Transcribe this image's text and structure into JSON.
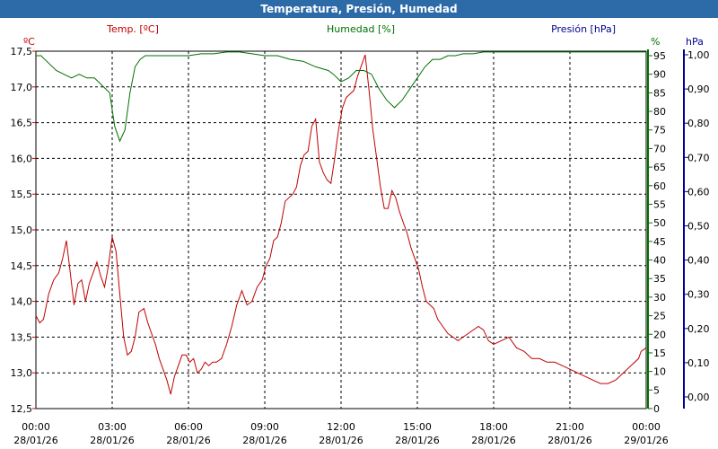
{
  "window": {
    "title": "Temperatura, Presión, Humedad"
  },
  "colors": {
    "temperature": "#c00000",
    "humidity": "#007000",
    "pressure": "#000090",
    "grid": "#000000",
    "title_bar": "#2c6aa8"
  },
  "chart_data": {
    "type": "line",
    "title": "Temperatura, Presión, Humedad",
    "grid": true,
    "x_ticks": [
      {
        "time": "00:00",
        "date": "28/01/26"
      },
      {
        "time": "03:00",
        "date": "28/01/26"
      },
      {
        "time": "06:00",
        "date": "28/01/26"
      },
      {
        "time": "09:00",
        "date": "28/01/26"
      },
      {
        "time": "12:00",
        "date": "28/01/26"
      },
      {
        "time": "15:00",
        "date": "28/01/26"
      },
      {
        "time": "18:00",
        "date": "28/01/26"
      },
      {
        "time": "21:00",
        "date": "28/01/26"
      },
      {
        "time": "00:00",
        "date": "29/01/26"
      }
    ],
    "axes": {
      "temperature": {
        "label": "Temp. [ºC]",
        "unit": "ºC",
        "range": [
          12.5,
          17.5
        ],
        "ticks": [
          "12,5",
          "13,0",
          "13,5",
          "14,0",
          "14,5",
          "15,0",
          "15,5",
          "16,0",
          "16,5",
          "17,0",
          "17,5"
        ]
      },
      "humidity": {
        "label": "Humedad [%]",
        "unit": "%",
        "range": [
          0,
          95
        ],
        "ticks": [
          "0",
          "5",
          "10",
          "15",
          "20",
          "25",
          "30",
          "35",
          "40",
          "45",
          "50",
          "55",
          "60",
          "65",
          "70",
          "75",
          "80",
          "85",
          "90",
          "95"
        ]
      },
      "pressure": {
        "label": "Presión [hPa]",
        "unit": "hPa",
        "range": [
          0,
          1
        ],
        "ticks": [
          "0,00",
          "0,10",
          "0,20",
          "0,30",
          "0,40",
          "0,50",
          "0,60",
          "0,70",
          "0,80",
          "0,90",
          "1,00"
        ]
      }
    },
    "series": [
      {
        "name": "Temp. [ºC]",
        "axis": "temperature",
        "x": [
          0,
          0.15,
          0.3,
          0.5,
          0.7,
          0.9,
          1.05,
          1.2,
          1.35,
          1.5,
          1.65,
          1.8,
          1.95,
          2.1,
          2.25,
          2.4,
          2.55,
          2.7,
          2.85,
          3.0,
          3.15,
          3.3,
          3.45,
          3.6,
          3.75,
          3.9,
          4.05,
          4.25,
          4.4,
          4.55,
          4.7,
          4.85,
          5.0,
          5.15,
          5.3,
          5.45,
          5.6,
          5.75,
          5.9,
          6.05,
          6.2,
          6.35,
          6.5,
          6.65,
          6.8,
          6.95,
          7.1,
          7.3,
          7.5,
          7.7,
          7.9,
          8.1,
          8.3,
          8.5,
          8.7,
          8.9,
          9.05,
          9.2,
          9.35,
          9.5,
          9.65,
          9.8,
          9.95,
          10.1,
          10.25,
          10.4,
          10.55,
          10.7,
          10.85,
          11.0,
          11.15,
          11.3,
          11.45,
          11.6,
          11.75,
          11.9,
          12.05,
          12.2,
          12.35,
          12.5,
          12.65,
          12.8,
          12.95,
          13.1,
          13.25,
          13.4,
          13.55,
          13.7,
          13.85,
          14.0,
          14.15,
          14.3,
          14.45,
          14.6,
          14.75,
          14.9,
          15.05,
          15.2,
          15.35,
          15.5,
          15.65,
          15.8,
          16.0,
          16.2,
          16.4,
          16.6,
          16.8,
          17.0,
          17.2,
          17.4,
          17.6,
          17.8,
          18.0,
          18.3,
          18.6,
          18.9,
          19.2,
          19.5,
          19.8,
          20.1,
          20.4,
          20.7,
          21.0,
          21.3,
          21.6,
          21.9,
          22.2,
          22.5,
          22.8,
          23.1,
          23.4,
          23.7,
          23.8,
          24.0
        ],
        "y": [
          13.8,
          13.7,
          13.75,
          14.1,
          14.3,
          14.4,
          14.6,
          14.85,
          14.4,
          13.95,
          14.25,
          14.3,
          14.0,
          14.25,
          14.4,
          14.55,
          14.35,
          14.2,
          14.5,
          14.9,
          14.7,
          14.1,
          13.5,
          13.25,
          13.3,
          13.5,
          13.85,
          13.9,
          13.7,
          13.55,
          13.4,
          13.2,
          13.05,
          12.9,
          12.7,
          12.95,
          13.1,
          13.25,
          13.25,
          13.15,
          13.2,
          13.0,
          13.05,
          13.15,
          13.1,
          13.15,
          13.15,
          13.2,
          13.4,
          13.65,
          13.95,
          14.15,
          13.95,
          14.0,
          14.2,
          14.3,
          14.5,
          14.6,
          14.85,
          14.9,
          15.1,
          15.4,
          15.45,
          15.5,
          15.6,
          15.9,
          16.05,
          16.1,
          16.45,
          16.55,
          15.95,
          15.8,
          15.7,
          15.65,
          16.0,
          16.4,
          16.7,
          16.85,
          16.9,
          16.95,
          17.15,
          17.3,
          17.45,
          16.95,
          16.4,
          16.0,
          15.6,
          15.3,
          15.3,
          15.55,
          15.45,
          15.25,
          15.1,
          14.95,
          14.75,
          14.6,
          14.45,
          14.2,
          14.0,
          13.95,
          13.9,
          13.75,
          13.65,
          13.55,
          13.5,
          13.45,
          13.5,
          13.55,
          13.6,
          13.65,
          13.6,
          13.45,
          13.4,
          13.45,
          13.5,
          13.35,
          13.3,
          13.2,
          13.2,
          13.15,
          13.15,
          13.1,
          13.05,
          13.0,
          12.95,
          12.9,
          12.85,
          12.85,
          12.9,
          13.0,
          13.1,
          13.2,
          13.3,
          13.35
        ]
      },
      {
        "name": "Humedad [%]",
        "axis": "humidity",
        "x": [
          0,
          0.2,
          0.5,
          0.8,
          1.1,
          1.4,
          1.7,
          2.0,
          2.3,
          2.6,
          2.9,
          3.1,
          3.3,
          3.5,
          3.7,
          3.9,
          4.1,
          4.3,
          4.6,
          5.0,
          5.5,
          6.0,
          6.5,
          7.0,
          7.5,
          8.0,
          8.5,
          9.0,
          9.5,
          10.0,
          10.5,
          11.0,
          11.5,
          11.7,
          12.0,
          12.3,
          12.6,
          12.9,
          13.2,
          13.5,
          13.8,
          14.1,
          14.4,
          14.7,
          15.0,
          15.3,
          15.6,
          15.9,
          16.2,
          16.5,
          16.8,
          17.2,
          17.6,
          18.0,
          18.5,
          19.0,
          19.5,
          20.0,
          20.5,
          21.0,
          21.5,
          22.0,
          22.5,
          23.0,
          23.5,
          24.0
        ],
        "y": [
          95,
          95,
          93,
          91,
          90,
          89,
          90,
          89,
          89,
          87,
          85,
          76,
          72,
          75,
          85,
          92,
          94,
          95,
          95,
          95,
          95,
          95,
          95.5,
          95.5,
          96,
          96,
          95.5,
          95,
          95,
          94,
          93.5,
          92,
          91,
          90,
          88,
          89,
          91,
          91,
          90,
          86,
          83,
          81,
          83,
          86,
          89,
          92,
          94,
          94,
          95,
          95,
          95.5,
          95.5,
          96,
          96,
          96,
          96,
          96,
          96,
          96,
          96,
          96,
          96,
          96,
          96,
          96,
          96
        ]
      },
      {
        "name": "Presión [hPa]",
        "axis": "pressure",
        "x": [],
        "y": []
      }
    ]
  }
}
